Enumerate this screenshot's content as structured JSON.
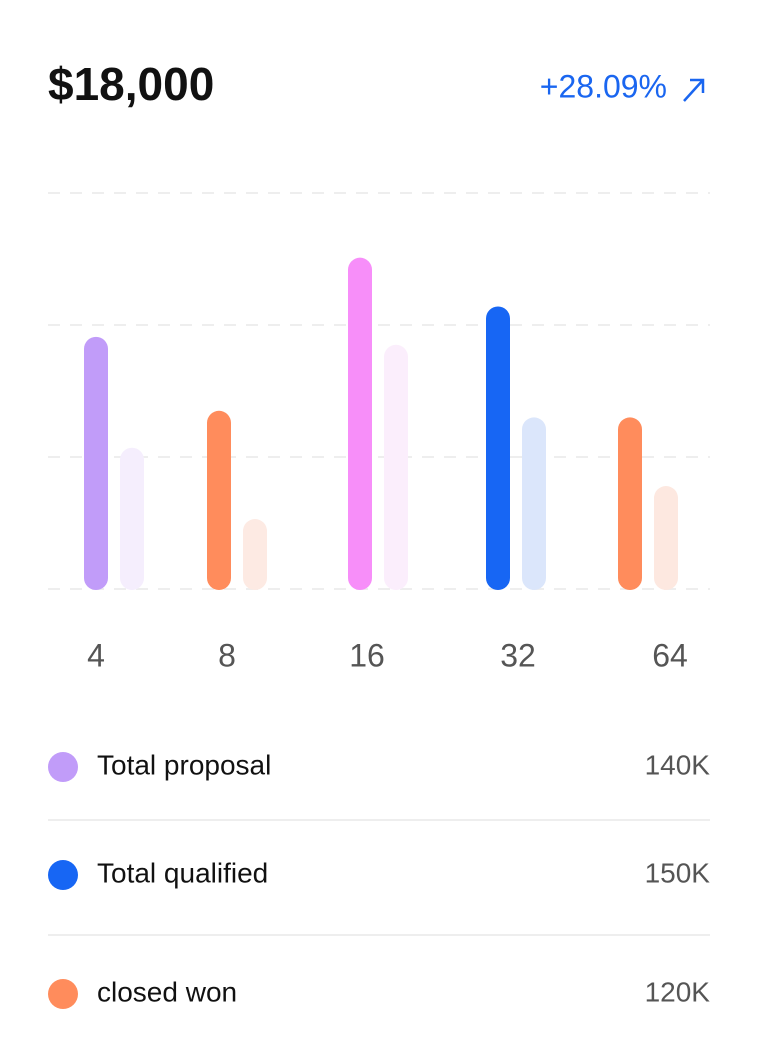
{
  "header": {
    "amount": "$18,000",
    "change": "+28.09%"
  },
  "chart_data": {
    "type": "bar",
    "categories": [
      "4",
      "8",
      "16",
      "32",
      "64"
    ],
    "values": [
      1.91,
      1.35,
      2.51,
      2.14,
      1.3
    ],
    "colors": [
      "#c19cf9",
      "#ff8c5c",
      "#f78ef9",
      "#1766f4",
      "#ff8c5c"
    ],
    "compare_values": [
      1.07,
      0.53,
      1.85,
      1.3,
      0.78
    ],
    "compare_colors": [
      "#f5eefd",
      "#fdeae3",
      "#fbeefc",
      "#dbe6fb",
      "#fde8e0"
    ],
    "ylim": [
      0,
      3
    ],
    "yticks": [
      0,
      1,
      2,
      3
    ],
    "grid": true
  },
  "legend": [
    {
      "label": "Total proposal",
      "value": "140K",
      "color": "#c19cf9"
    },
    {
      "label": "Total qualified",
      "value": "150K",
      "color": "#1766f4"
    },
    {
      "label": "closed won",
      "value": "120K",
      "color": "#ff8c5c"
    }
  ]
}
